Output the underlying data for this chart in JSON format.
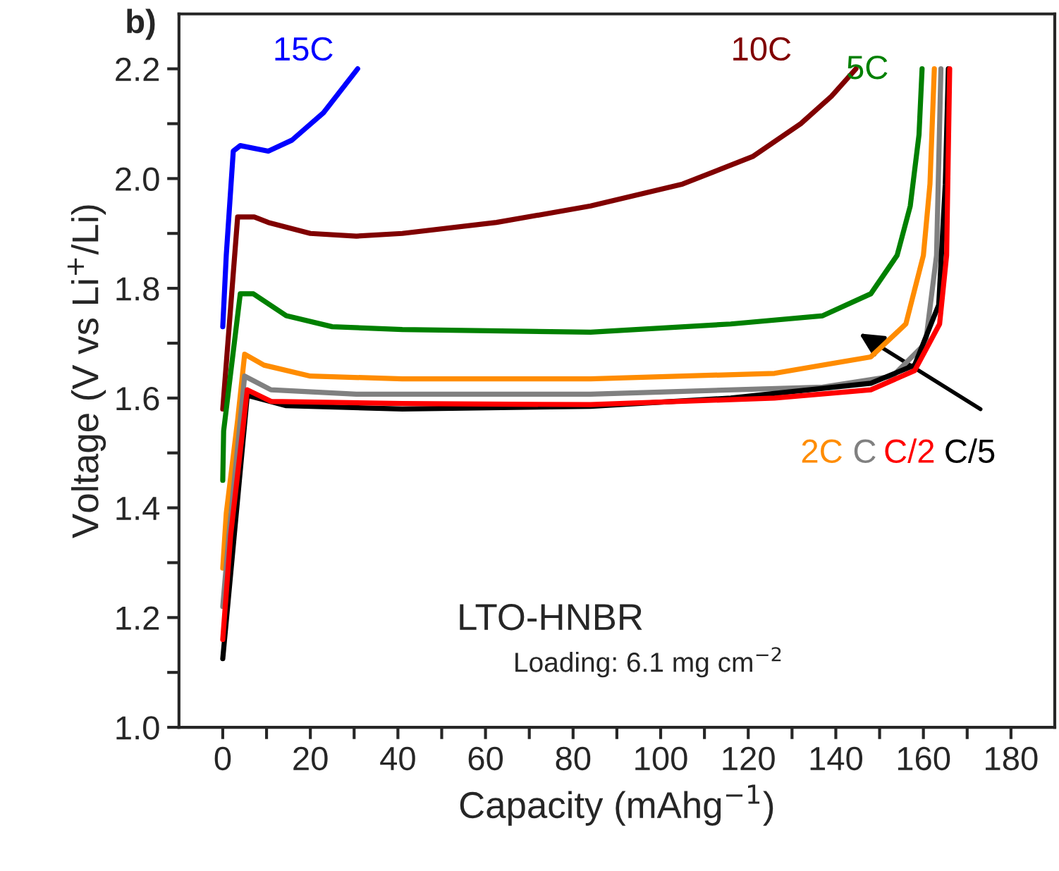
{
  "chart_data": {
    "type": "line",
    "xlabel": "Capacity (mAhg$^{−1}$)",
    "ylabel": "Voltage (V vs Li$^{+}$/Li)",
    "xlim": [
      -10,
      190
    ],
    "ylim": [
      1.0,
      2.3
    ],
    "xticks": [
      0,
      {
        "value": 10,
        "label": null
      },
      20,
      {
        "value": 30,
        "label": null
      },
      40,
      {
        "value": 50,
        "label": null
      },
      60,
      {
        "value": 70,
        "label": null
      },
      80,
      {
        "value": 90,
        "label": null
      },
      100,
      {
        "value": 110,
        "label": null
      },
      120,
      {
        "value": 130,
        "label": null
      },
      140,
      {
        "value": 150,
        "label": null
      },
      160,
      {
        "value": 170,
        "label": null
      },
      180
    ],
    "yticks": [
      {
        "value": 1.0,
        "label": "1.0"
      },
      {
        "value": 1.1,
        "label": null
      },
      1.2,
      {
        "value": 1.3,
        "label": null
      },
      1.4,
      {
        "value": 1.5,
        "label": null
      },
      1.6,
      {
        "value": 1.7,
        "label": null
      },
      1.8,
      {
        "value": 1.9,
        "label": null
      },
      {
        "value": 2.0,
        "label": "2.0"
      },
      {
        "value": 2.1,
        "label": null
      },
      2.2
    ],
    "grid": false,
    "legend": "right",
    "marker": "none",
    "line_style": "solid",
    "annotations": [
      "b)",
      "LTO-HNBR",
      "Loading: 6.1 mg cm$^{−2}$"
    ],
    "series": [
      {
        "name": "15C",
        "color": "#0000ff",
        "x": [
          0,
          0.8,
          2.4,
          4,
          10.4,
          15.8,
          23,
          30.8
        ],
        "values": [
          1.73,
          1.86,
          2.05,
          2.06,
          2.05,
          2.07,
          2.12,
          2.2
        ]
      },
      {
        "name": "10C",
        "color": "#800000",
        "x": [
          0,
          3.4,
          7.2,
          10.4,
          20,
          30.5,
          41,
          62.5,
          84,
          105,
          121,
          132,
          139,
          144.6
        ],
        "values": [
          1.58,
          1.93,
          1.93,
          1.92,
          1.9,
          1.895,
          1.9,
          1.92,
          1.95,
          1.99,
          2.04,
          2.1,
          2.15,
          2.2
        ]
      },
      {
        "name": "5C",
        "color": "#008000",
        "x": [
          0,
          0.2,
          4,
          7,
          14.5,
          25,
          41,
          84,
          116,
          137,
          148,
          154,
          157,
          159,
          159.7
        ],
        "values": [
          1.45,
          1.54,
          1.79,
          1.79,
          1.75,
          1.73,
          1.725,
          1.72,
          1.735,
          1.75,
          1.79,
          1.86,
          1.95,
          2.08,
          2.2
        ]
      },
      {
        "name": "2C",
        "color": "#ff8c00",
        "x": [
          0,
          0.8,
          3.4,
          5,
          9.4,
          20,
          41,
          84,
          126,
          148,
          156,
          160,
          161.5,
          162.5
        ],
        "values": [
          1.29,
          1.39,
          1.56,
          1.68,
          1.66,
          1.64,
          1.635,
          1.635,
          1.645,
          1.675,
          1.735,
          1.86,
          1.99,
          2.2
        ]
      },
      {
        "name": "C",
        "color": "#808080",
        "x": [
          0,
          1.4,
          5,
          11,
          30.5,
          84,
          137,
          153,
          160.5,
          163,
          164
        ],
        "values": [
          1.22,
          1.35,
          1.64,
          1.615,
          1.607,
          1.607,
          1.62,
          1.64,
          1.7,
          1.86,
          2.2
        ]
      },
      {
        "name": "C/5",
        "color": "#000000",
        "x": [
          0,
          5.6,
          14.5,
          41,
          84,
          116,
          148,
          158,
          163.5,
          165,
          165.7
        ],
        "values": [
          1.125,
          1.605,
          1.586,
          1.58,
          1.585,
          1.6,
          1.627,
          1.66,
          1.77,
          1.99,
          2.2
        ]
      },
      {
        "name": "C/2",
        "color": "#ff0000",
        "x": [
          0,
          1.8,
          5.6,
          11,
          41,
          84,
          126,
          148,
          158,
          163.7,
          165.3,
          166
        ],
        "values": [
          1.16,
          1.35,
          1.615,
          1.594,
          1.59,
          1.588,
          1.6,
          1.615,
          1.65,
          1.735,
          1.86,
          2.2
        ]
      }
    ]
  }
}
